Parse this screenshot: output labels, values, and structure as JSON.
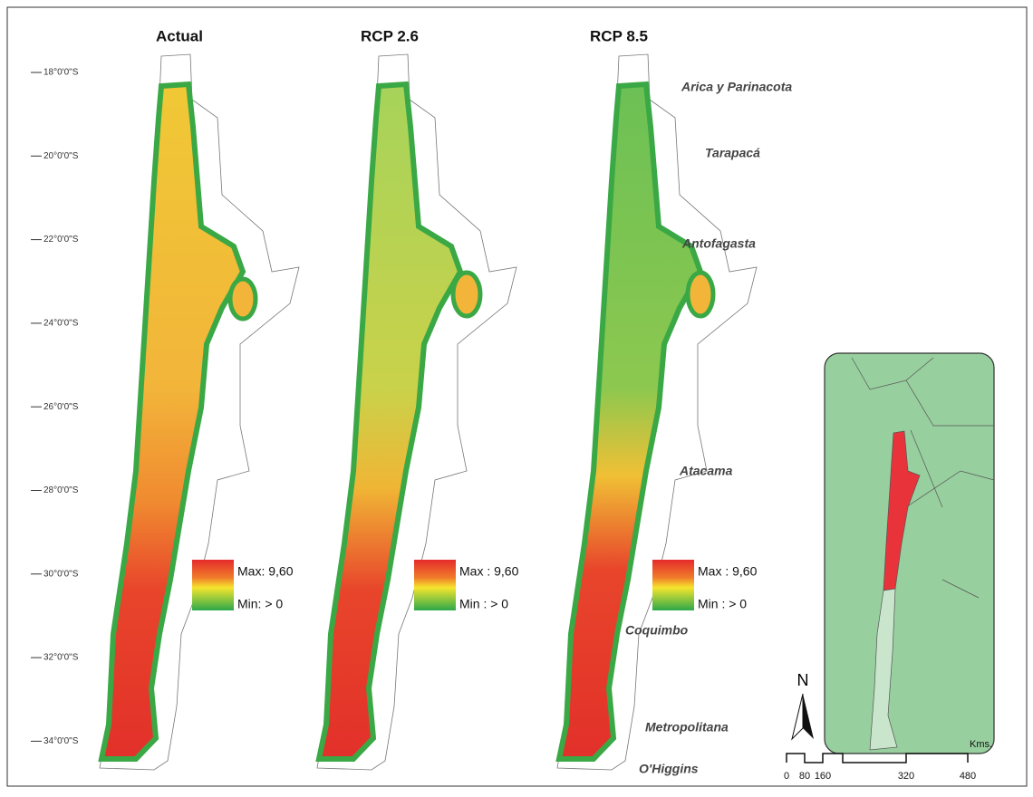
{
  "panels": [
    {
      "title": "Actual",
      "legend_max": "Max: 9,60",
      "legend_min": "Min: > 0"
    },
    {
      "title": "RCP 2.6",
      "legend_max": "Max : 9,60",
      "legend_min": "Min : > 0"
    },
    {
      "title": "RCP 8.5",
      "legend_max": "Max : 9,60",
      "legend_min": "Min : > 0"
    }
  ],
  "latitudes": [
    "18°0'0\"S",
    "20°0'0\"S",
    "22°0'0\"S",
    "24°0'0\"S",
    "26°0'0\"S",
    "28°0'0\"S",
    "30°0'0\"S",
    "32°0'0\"S",
    "34°0'0\"S"
  ],
  "regions": [
    "Arica y Parinacota",
    "Tarapacá",
    "Antofagasta",
    "Atacama",
    "Coquimbo",
    "Metropolitana",
    "O'Higgins"
  ],
  "north": "N",
  "scale": {
    "labels": [
      "0",
      "80",
      "160",
      "320",
      "480"
    ],
    "unit": "Kms."
  }
}
